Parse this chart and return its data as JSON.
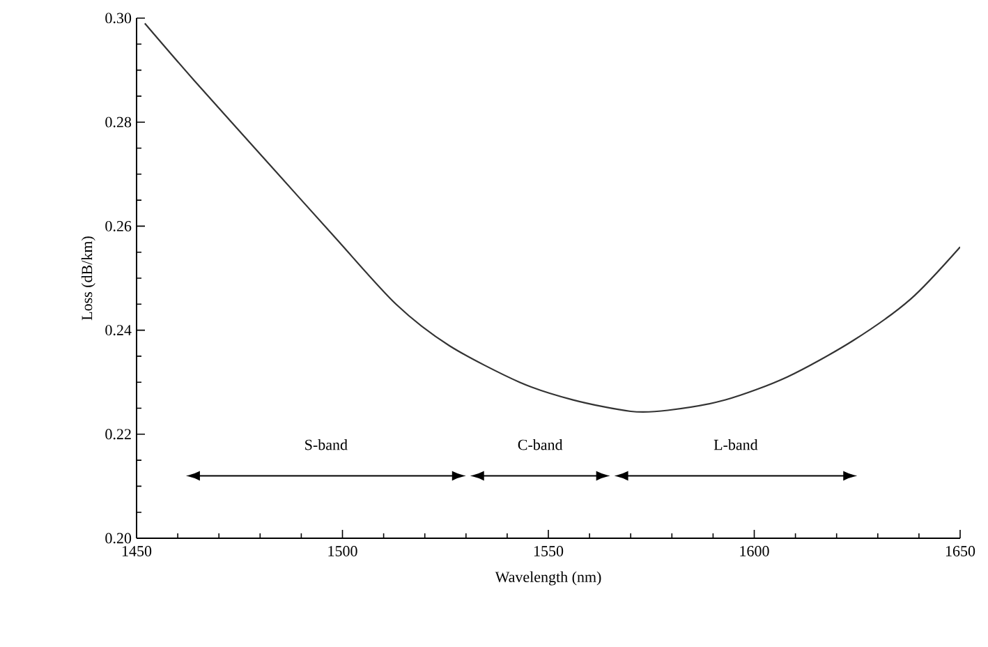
{
  "chart_data": {
    "type": "line",
    "xlabel": "Wavelength (nm)",
    "ylabel": "Loss (dB/km)",
    "xlim": [
      1450,
      1650
    ],
    "ylim": [
      0.2,
      0.3
    ],
    "xticks": [
      1450,
      1500,
      1550,
      1600,
      1650
    ],
    "yticks": [
      {
        "value": 0.2,
        "label": "0.20"
      },
      {
        "value": 0.22,
        "label": "0.22"
      },
      {
        "value": 0.24,
        "label": "0.24"
      },
      {
        "value": 0.26,
        "label": "0.26"
      },
      {
        "value": 0.28,
        "label": "0.28"
      },
      {
        "value": 0.3,
        "label": "0.30"
      }
    ],
    "grid": false,
    "marker": "none",
    "line_style": "solid",
    "series": [
      {
        "color": "#333333",
        "x": [
          1452,
          1464,
          1481,
          1498,
          1513,
          1526,
          1543,
          1556,
          1570,
          1579,
          1593,
          1608,
          1624,
          1638,
          1650
        ],
        "values": [
          0.299,
          0.288,
          0.273,
          0.258,
          0.245,
          0.237,
          0.23,
          0.2266,
          0.2244,
          0.2246,
          0.2266,
          0.231,
          0.238,
          0.246,
          0.256
        ]
      }
    ],
    "annotations": [
      "S-band",
      "C-band",
      "L-band"
    ]
  }
}
